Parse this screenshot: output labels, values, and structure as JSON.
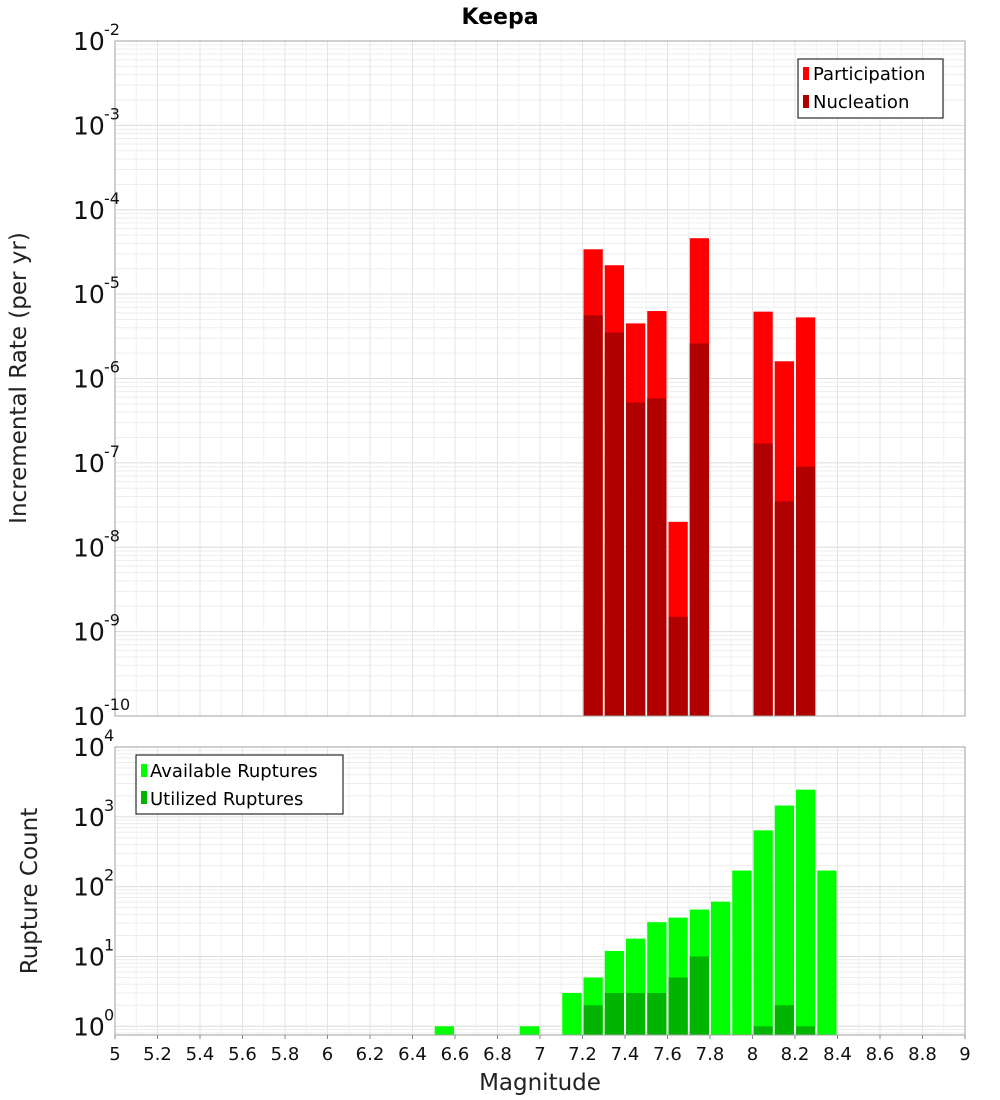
{
  "chart_data": [
    {
      "type": "bar",
      "title": "Keepa",
      "xlabel": "Magnitude",
      "ylabel": "Incremental Rate (per yr)",
      "yscale": "log",
      "ylim": [
        1e-10,
        0.01
      ],
      "xlim": [
        5,
        9
      ],
      "bin_width": 0.1,
      "ytick_labels": [
        {
          "base": "10",
          "exp": "-10"
        },
        {
          "base": "10",
          "exp": "-9"
        },
        {
          "base": "10",
          "exp": "-8"
        },
        {
          "base": "10",
          "exp": "-7"
        },
        {
          "base": "10",
          "exp": "-6"
        },
        {
          "base": "10",
          "exp": "-5"
        },
        {
          "base": "10",
          "exp": "-4"
        },
        {
          "base": "10",
          "exp": "-3"
        },
        {
          "base": "10",
          "exp": "-2"
        }
      ],
      "legend_position": "top-right",
      "series": [
        {
          "name": "Participation",
          "color": "#ff0000",
          "points": [
            {
              "x": 7.25,
              "y": 3.4e-05
            },
            {
              "x": 7.35,
              "y": 2.2e-05
            },
            {
              "x": 7.45,
              "y": 4.5e-06
            },
            {
              "x": 7.55,
              "y": 6.3e-06
            },
            {
              "x": 7.65,
              "y": 2e-08
            },
            {
              "x": 7.75,
              "y": 4.6e-05
            },
            {
              "x": 8.05,
              "y": 6.2e-06
            },
            {
              "x": 8.15,
              "y": 1.6e-06
            },
            {
              "x": 8.25,
              "y": 5.3e-06
            }
          ]
        },
        {
          "name": "Nucleation",
          "color": "#b00000",
          "points": [
            {
              "x": 7.25,
              "y": 5.6e-06
            },
            {
              "x": 7.35,
              "y": 3.5e-06
            },
            {
              "x": 7.45,
              "y": 5.2e-07
            },
            {
              "x": 7.55,
              "y": 5.8e-07
            },
            {
              "x": 7.65,
              "y": 1.5e-09
            },
            {
              "x": 7.75,
              "y": 2.6e-06
            },
            {
              "x": 8.05,
              "y": 1.7e-07
            },
            {
              "x": 8.15,
              "y": 3.5e-08
            },
            {
              "x": 8.25,
              "y": 9e-08
            }
          ]
        }
      ]
    },
    {
      "type": "bar",
      "title": "",
      "xlabel": "Magnitude",
      "ylabel": "Rupture Count",
      "yscale": "log",
      "ylim": [
        0.75,
        10000
      ],
      "xlim": [
        5,
        9
      ],
      "bin_width": 0.1,
      "ytick_labels": [
        {
          "base": "10",
          "exp": "0"
        },
        {
          "base": "10",
          "exp": "1"
        },
        {
          "base": "10",
          "exp": "2"
        },
        {
          "base": "10",
          "exp": "3"
        },
        {
          "base": "10",
          "exp": "4"
        }
      ],
      "xtick_labels": [
        "5",
        "5.2",
        "5.4",
        "5.6",
        "5.8",
        "6",
        "6.2",
        "6.4",
        "6.6",
        "6.8",
        "7",
        "7.2",
        "7.4",
        "7.6",
        "7.8",
        "8",
        "8.2",
        "8.4",
        "8.6",
        "8.8",
        "9"
      ],
      "legend_position": "top-left",
      "series": [
        {
          "name": "Available Ruptures",
          "color": "#00ff00",
          "points": [
            {
              "x": 6.55,
              "y": 1
            },
            {
              "x": 6.95,
              "y": 1
            },
            {
              "x": 7.15,
              "y": 3
            },
            {
              "x": 7.25,
              "y": 5
            },
            {
              "x": 7.35,
              "y": 12
            },
            {
              "x": 7.45,
              "y": 18
            },
            {
              "x": 7.55,
              "y": 31
            },
            {
              "x": 7.65,
              "y": 36
            },
            {
              "x": 7.75,
              "y": 47
            },
            {
              "x": 7.85,
              "y": 61
            },
            {
              "x": 7.95,
              "y": 170
            },
            {
              "x": 8.05,
              "y": 640
            },
            {
              "x": 8.15,
              "y": 1450
            },
            {
              "x": 8.25,
              "y": 2450
            },
            {
              "x": 8.35,
              "y": 170
            }
          ]
        },
        {
          "name": "Utilized Ruptures",
          "color": "#00b400",
          "points": [
            {
              "x": 7.25,
              "y": 2
            },
            {
              "x": 7.35,
              "y": 3
            },
            {
              "x": 7.45,
              "y": 3
            },
            {
              "x": 7.55,
              "y": 3
            },
            {
              "x": 7.65,
              "y": 5
            },
            {
              "x": 7.75,
              "y": 10
            },
            {
              "x": 8.05,
              "y": 1
            },
            {
              "x": 8.15,
              "y": 2
            },
            {
              "x": 8.25,
              "y": 1
            }
          ]
        }
      ]
    }
  ]
}
